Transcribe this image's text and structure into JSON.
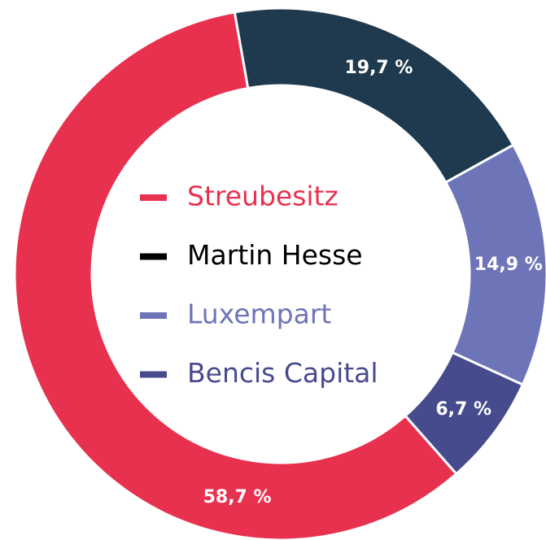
{
  "chart_data": {
    "type": "donut",
    "series": [
      {
        "name": "Streubesitz",
        "color": "#e8314f",
        "legend_color": "#e8314f",
        "values": [
          58.7
        ],
        "value_labels": [
          "58,7 %"
        ]
      },
      {
        "name": "Martin Hesse",
        "color": "#1f3a4f",
        "legend_color": "#000000",
        "values": [
          19.7
        ],
        "value_labels": [
          "19,7 %"
        ]
      },
      {
        "name": "Luxempart",
        "color": "#6e74b8",
        "legend_color": "#6e74b8",
        "values": [
          14.9
        ],
        "value_labels": [
          "14,9 %"
        ]
      },
      {
        "name": "Bencis Capital",
        "color": "#454b8c",
        "legend_color": "#454b8c",
        "values": [
          6.7
        ],
        "value_labels": [
          "6,7 %"
        ]
      }
    ]
  }
}
